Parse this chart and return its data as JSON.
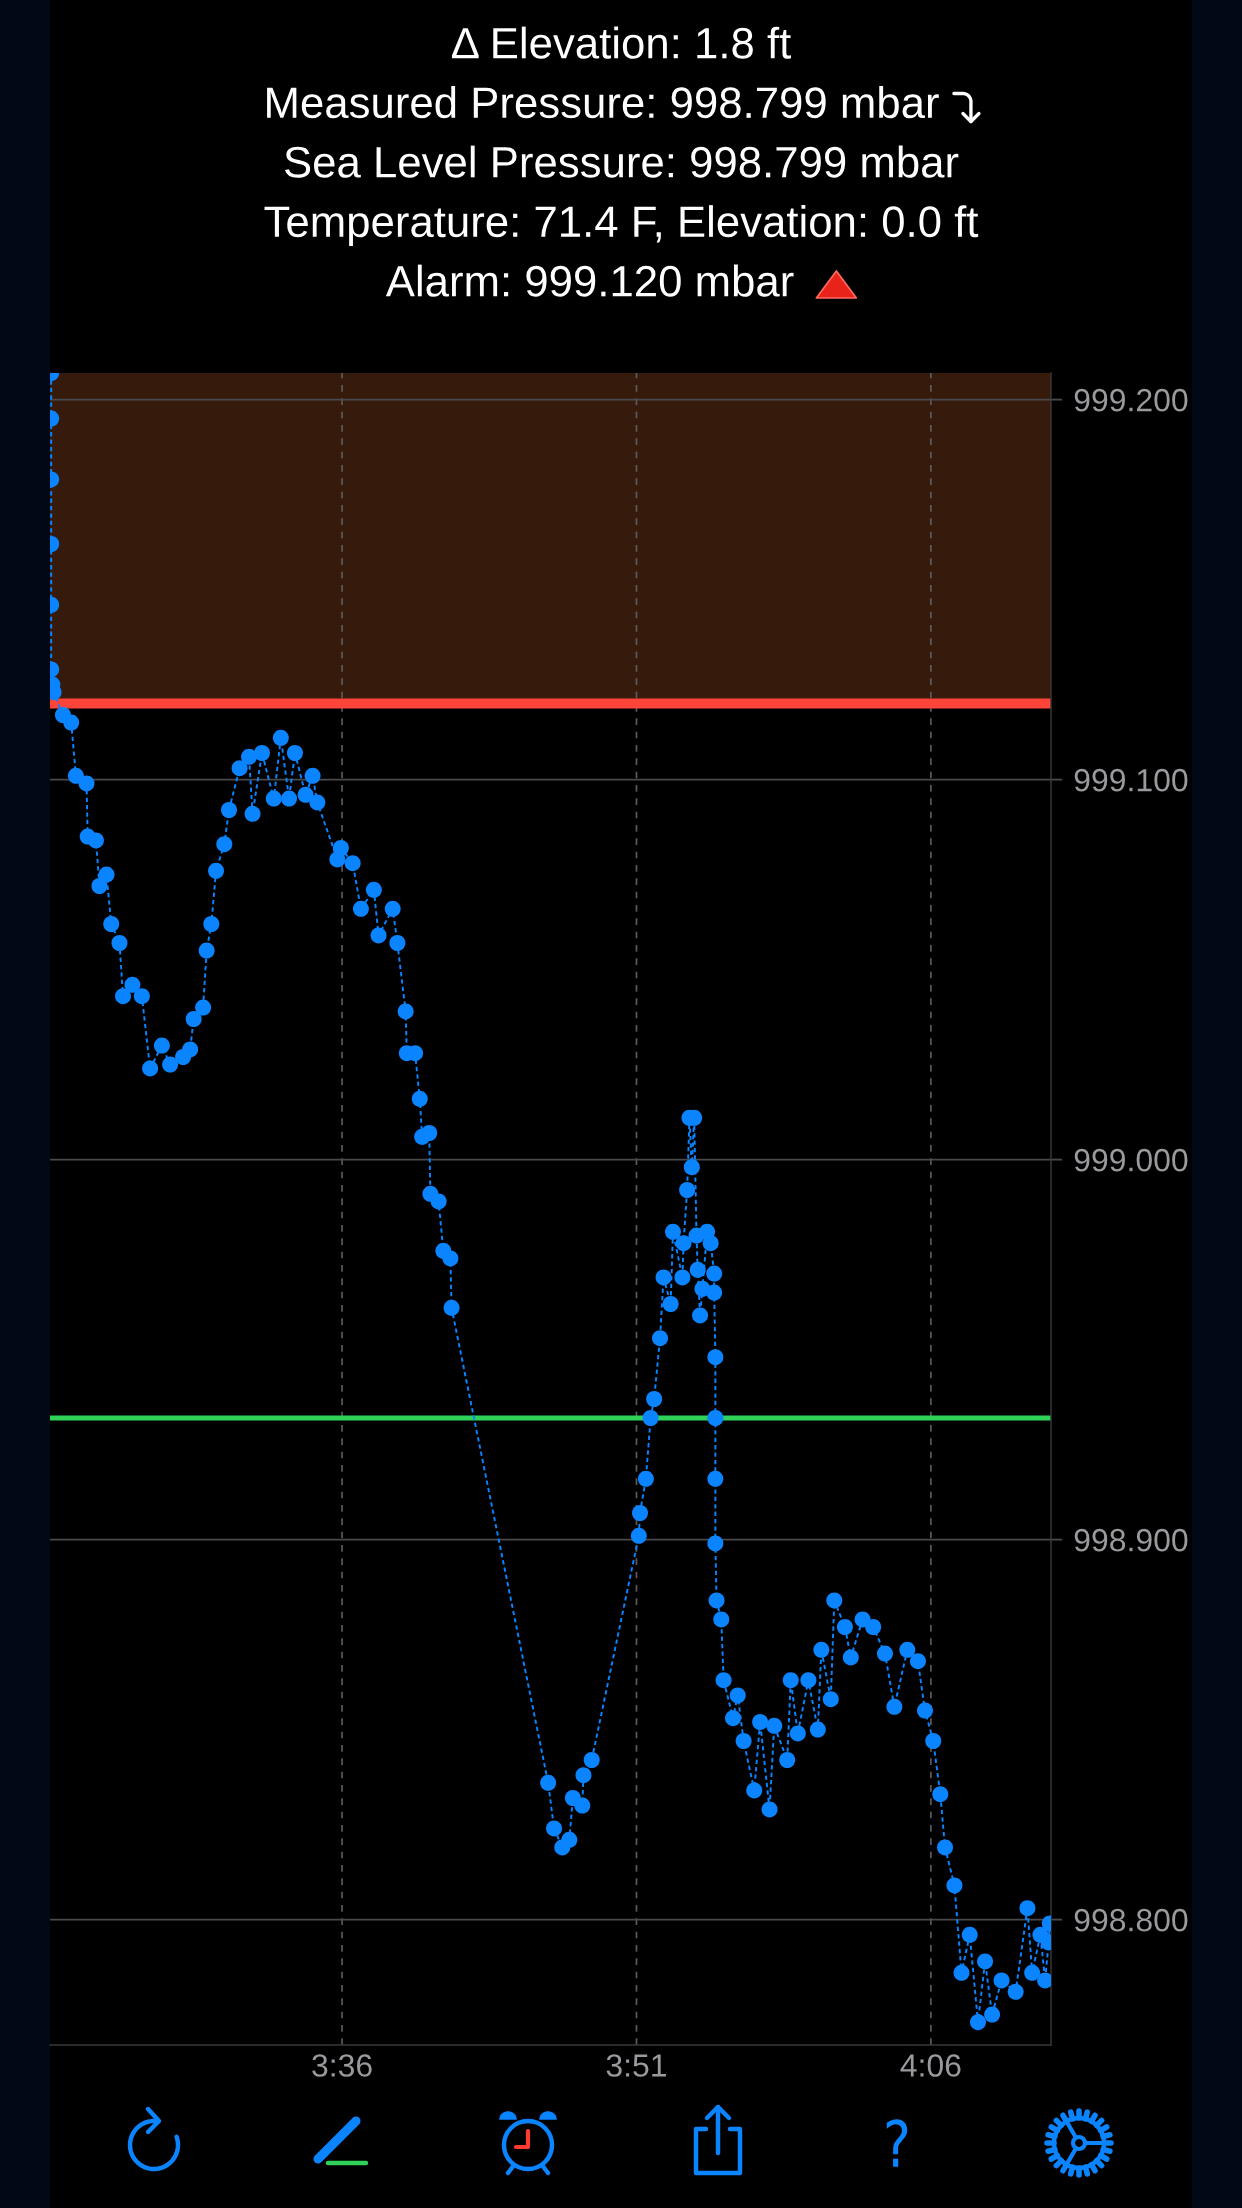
{
  "chart_data": {
    "type": "line",
    "title": "Δ Elevation: 1.8 ft",
    "annotations": [
      "Measured Pressure: 998.799 mbar",
      "Sea Level Pressure: 998.799 mbar",
      "Temperature: 71.4 F, Elevation: 0.0 ft",
      "Alarm: 999.120 mbar"
    ],
    "series": [
      {
        "color": "#0a84ff",
        "x": [
          3.353,
          3.353,
          3.353,
          3.353,
          3.353,
          3.353,
          3.354,
          3.355,
          3.363,
          3.37,
          3.374,
          3.383,
          3.384,
          3.391,
          3.394,
          3.4,
          3.404,
          3.411,
          3.414,
          3.422,
          3.43,
          3.437,
          3.447,
          3.454,
          3.465,
          3.471,
          3.474,
          3.482,
          3.485,
          3.489,
          3.493,
          3.5,
          3.504,
          3.513,
          3.521,
          3.524,
          3.532,
          3.542,
          3.548,
          3.555,
          3.56,
          3.569,
          3.575,
          3.579,
          3.596,
          3.599,
          3.609,
          3.616,
          3.627,
          3.631,
          3.643,
          3.647,
          3.654,
          3.655,
          3.662,
          3.666,
          3.668,
          3.674,
          3.675,
          3.682,
          3.686,
          3.692,
          3.693,
          3.775,
          3.78,
          3.787,
          3.793,
          3.796,
          3.804,
          3.805,
          3.812,
          3.852,
          3.853,
          3.858,
          3.862,
          3.865,
          3.87,
          3.873,
          3.879,
          3.881,
          3.889,
          3.89,
          3.893,
          3.895,
          3.897,
          3.899,
          3.901,
          3.902,
          3.904,
          3.906,
          3.91,
          3.913,
          3.916,
          3.916,
          3.917,
          3.917,
          3.917,
          3.917,
          3.918,
          3.922,
          3.924,
          3.932,
          3.936,
          3.941,
          3.95,
          3.955,
          3.963,
          3.967,
          3.978,
          3.981,
          3.987,
          3.996,
          4.004,
          4.007,
          4.015,
          4.018,
          4.027,
          4.032,
          4.042,
          4.051,
          4.061,
          4.069,
          4.08,
          4.089,
          4.095,
          4.102,
          4.108,
          4.112,
          4.12,
          4.126,
          4.133,
          4.14,
          4.146,
          4.152,
          4.16,
          4.172,
          4.182,
          4.186,
          4.193,
          4.197,
          4.2,
          4.201
        ],
        "values": [
          999.207,
          999.195,
          999.179,
          999.162,
          999.146,
          999.129,
          999.125,
          999.123,
          999.117,
          999.115,
          999.101,
          999.099,
          999.085,
          999.084,
          999.072,
          999.075,
          999.062,
          999.057,
          999.043,
          999.046,
          999.043,
          999.024,
          999.03,
          999.025,
          999.027,
          999.029,
          999.037,
          999.04,
          999.055,
          999.062,
          999.076,
          999.083,
          999.092,
          999.103,
          999.106,
          999.091,
          999.107,
          999.095,
          999.111,
          999.095,
          999.107,
          999.096,
          999.101,
          999.094,
          999.079,
          999.082,
          999.078,
          999.066,
          999.071,
          999.059,
          999.066,
          999.057,
          999.039,
          999.028,
          999.028,
          999.016,
          999.006,
          999.007,
          998.991,
          998.989,
          998.976,
          998.974,
          998.961,
          998.836,
          998.824,
          998.819,
          998.821,
          998.832,
          998.83,
          998.838,
          998.842,
          998.901,
          998.907,
          998.916,
          998.932,
          998.937,
          998.953,
          998.969,
          998.962,
          998.981,
          998.969,
          998.978,
          998.992,
          999.011,
          998.998,
          999.011,
          998.98,
          998.971,
          998.959,
          998.966,
          998.981,
          998.978,
          998.97,
          998.965,
          998.948,
          998.932,
          998.916,
          998.899,
          998.884,
          998.879,
          998.863,
          998.853,
          998.859,
          998.847,
          998.834,
          998.852,
          998.829,
          998.851,
          998.842,
          998.863,
          998.849,
          998.863,
          998.85,
          998.871,
          998.858,
          998.884,
          998.877,
          998.869,
          998.879,
          998.877,
          998.87,
          998.856,
          998.871,
          998.868,
          998.855,
          998.847,
          998.833,
          998.819,
          998.809,
          998.786,
          998.796,
          998.773,
          998.789,
          998.775,
          998.784,
          998.781,
          998.803,
          998.786,
          998.796,
          998.784,
          998.794,
          998.799
        ]
      }
    ],
    "xlim": [
      3.352,
      4.202
    ],
    "ylim": [
      998.767,
      999.207
    ],
    "xticks": [
      {
        "value": 3.6,
        "label": "3:36"
      },
      {
        "value": 3.85,
        "label": "3:51"
      },
      {
        "value": 4.1,
        "label": "4:06"
      }
    ],
    "yticks": [
      {
        "value": 998.8,
        "label": "998.800"
      },
      {
        "value": 998.9,
        "label": "998.900"
      },
      {
        "value": 999.0,
        "label": "999.000"
      },
      {
        "value": 999.1,
        "label": "999.100"
      },
      {
        "value": 999.2,
        "label": "999.200"
      }
    ],
    "grid": true,
    "marker": "circle",
    "line_style": "dashed",
    "ref_lines": [
      {
        "axis": "y",
        "value": 999.12,
        "color": "#ff453a"
      },
      {
        "axis": "y",
        "value": 998.932,
        "color": "#30d158"
      }
    ],
    "bands": [
      {
        "axis": "y",
        "from": 999.12,
        "to": 999.207,
        "color": "#361b0c"
      }
    ]
  }
}
